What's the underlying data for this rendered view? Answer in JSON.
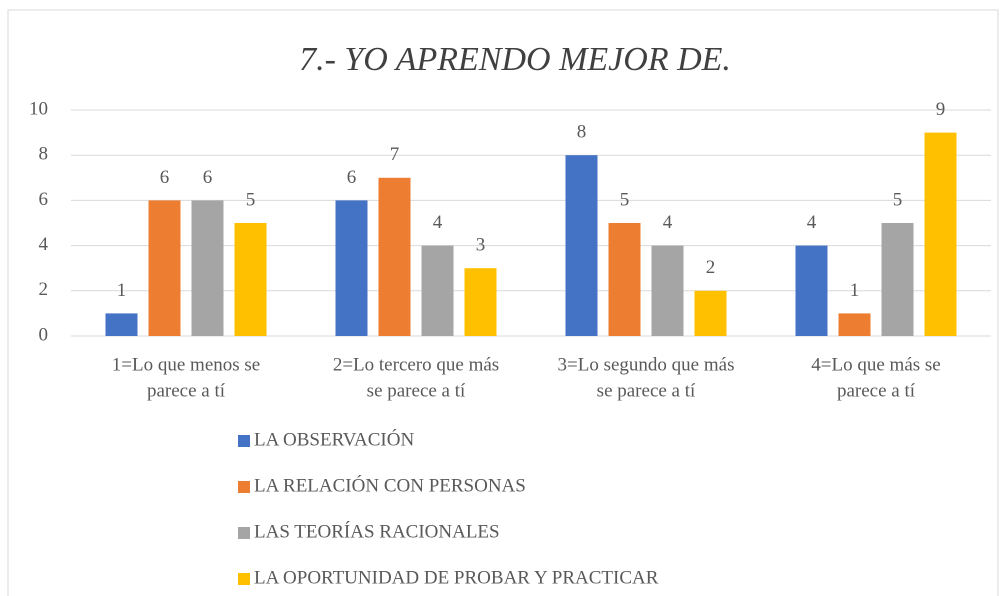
{
  "chart_data": {
    "type": "bar",
    "title": "7.- YO APRENDO MEJOR DE.",
    "categories": [
      [
        "1=Lo que menos se",
        "parece a tí"
      ],
      [
        "2=Lo tercero que más",
        "se parece a tí"
      ],
      [
        "3=Lo segundo que más",
        "se parece a tí"
      ],
      [
        "4=Lo que más se",
        "parece a tí"
      ]
    ],
    "series": [
      {
        "name": "LA OBSERVACIÓN",
        "color": "#4472c4",
        "values": [
          1,
          6,
          8,
          4
        ]
      },
      {
        "name": "LA RELACIÓN CON PERSONAS",
        "color": "#ed7d31",
        "values": [
          6,
          7,
          5,
          1
        ]
      },
      {
        "name": "LAS TEORÍAS RACIONALES",
        "color": "#a5a5a5",
        "values": [
          6,
          4,
          4,
          5
        ]
      },
      {
        "name": "LA OPORTUNIDAD DE PROBAR Y PRACTICAR",
        "color": "#ffc000",
        "values": [
          5,
          3,
          2,
          9
        ]
      }
    ],
    "ylim": [
      0,
      10
    ],
    "yticks": [
      0,
      2,
      4,
      6,
      8,
      10
    ],
    "grid": true,
    "legend": "bottom"
  }
}
